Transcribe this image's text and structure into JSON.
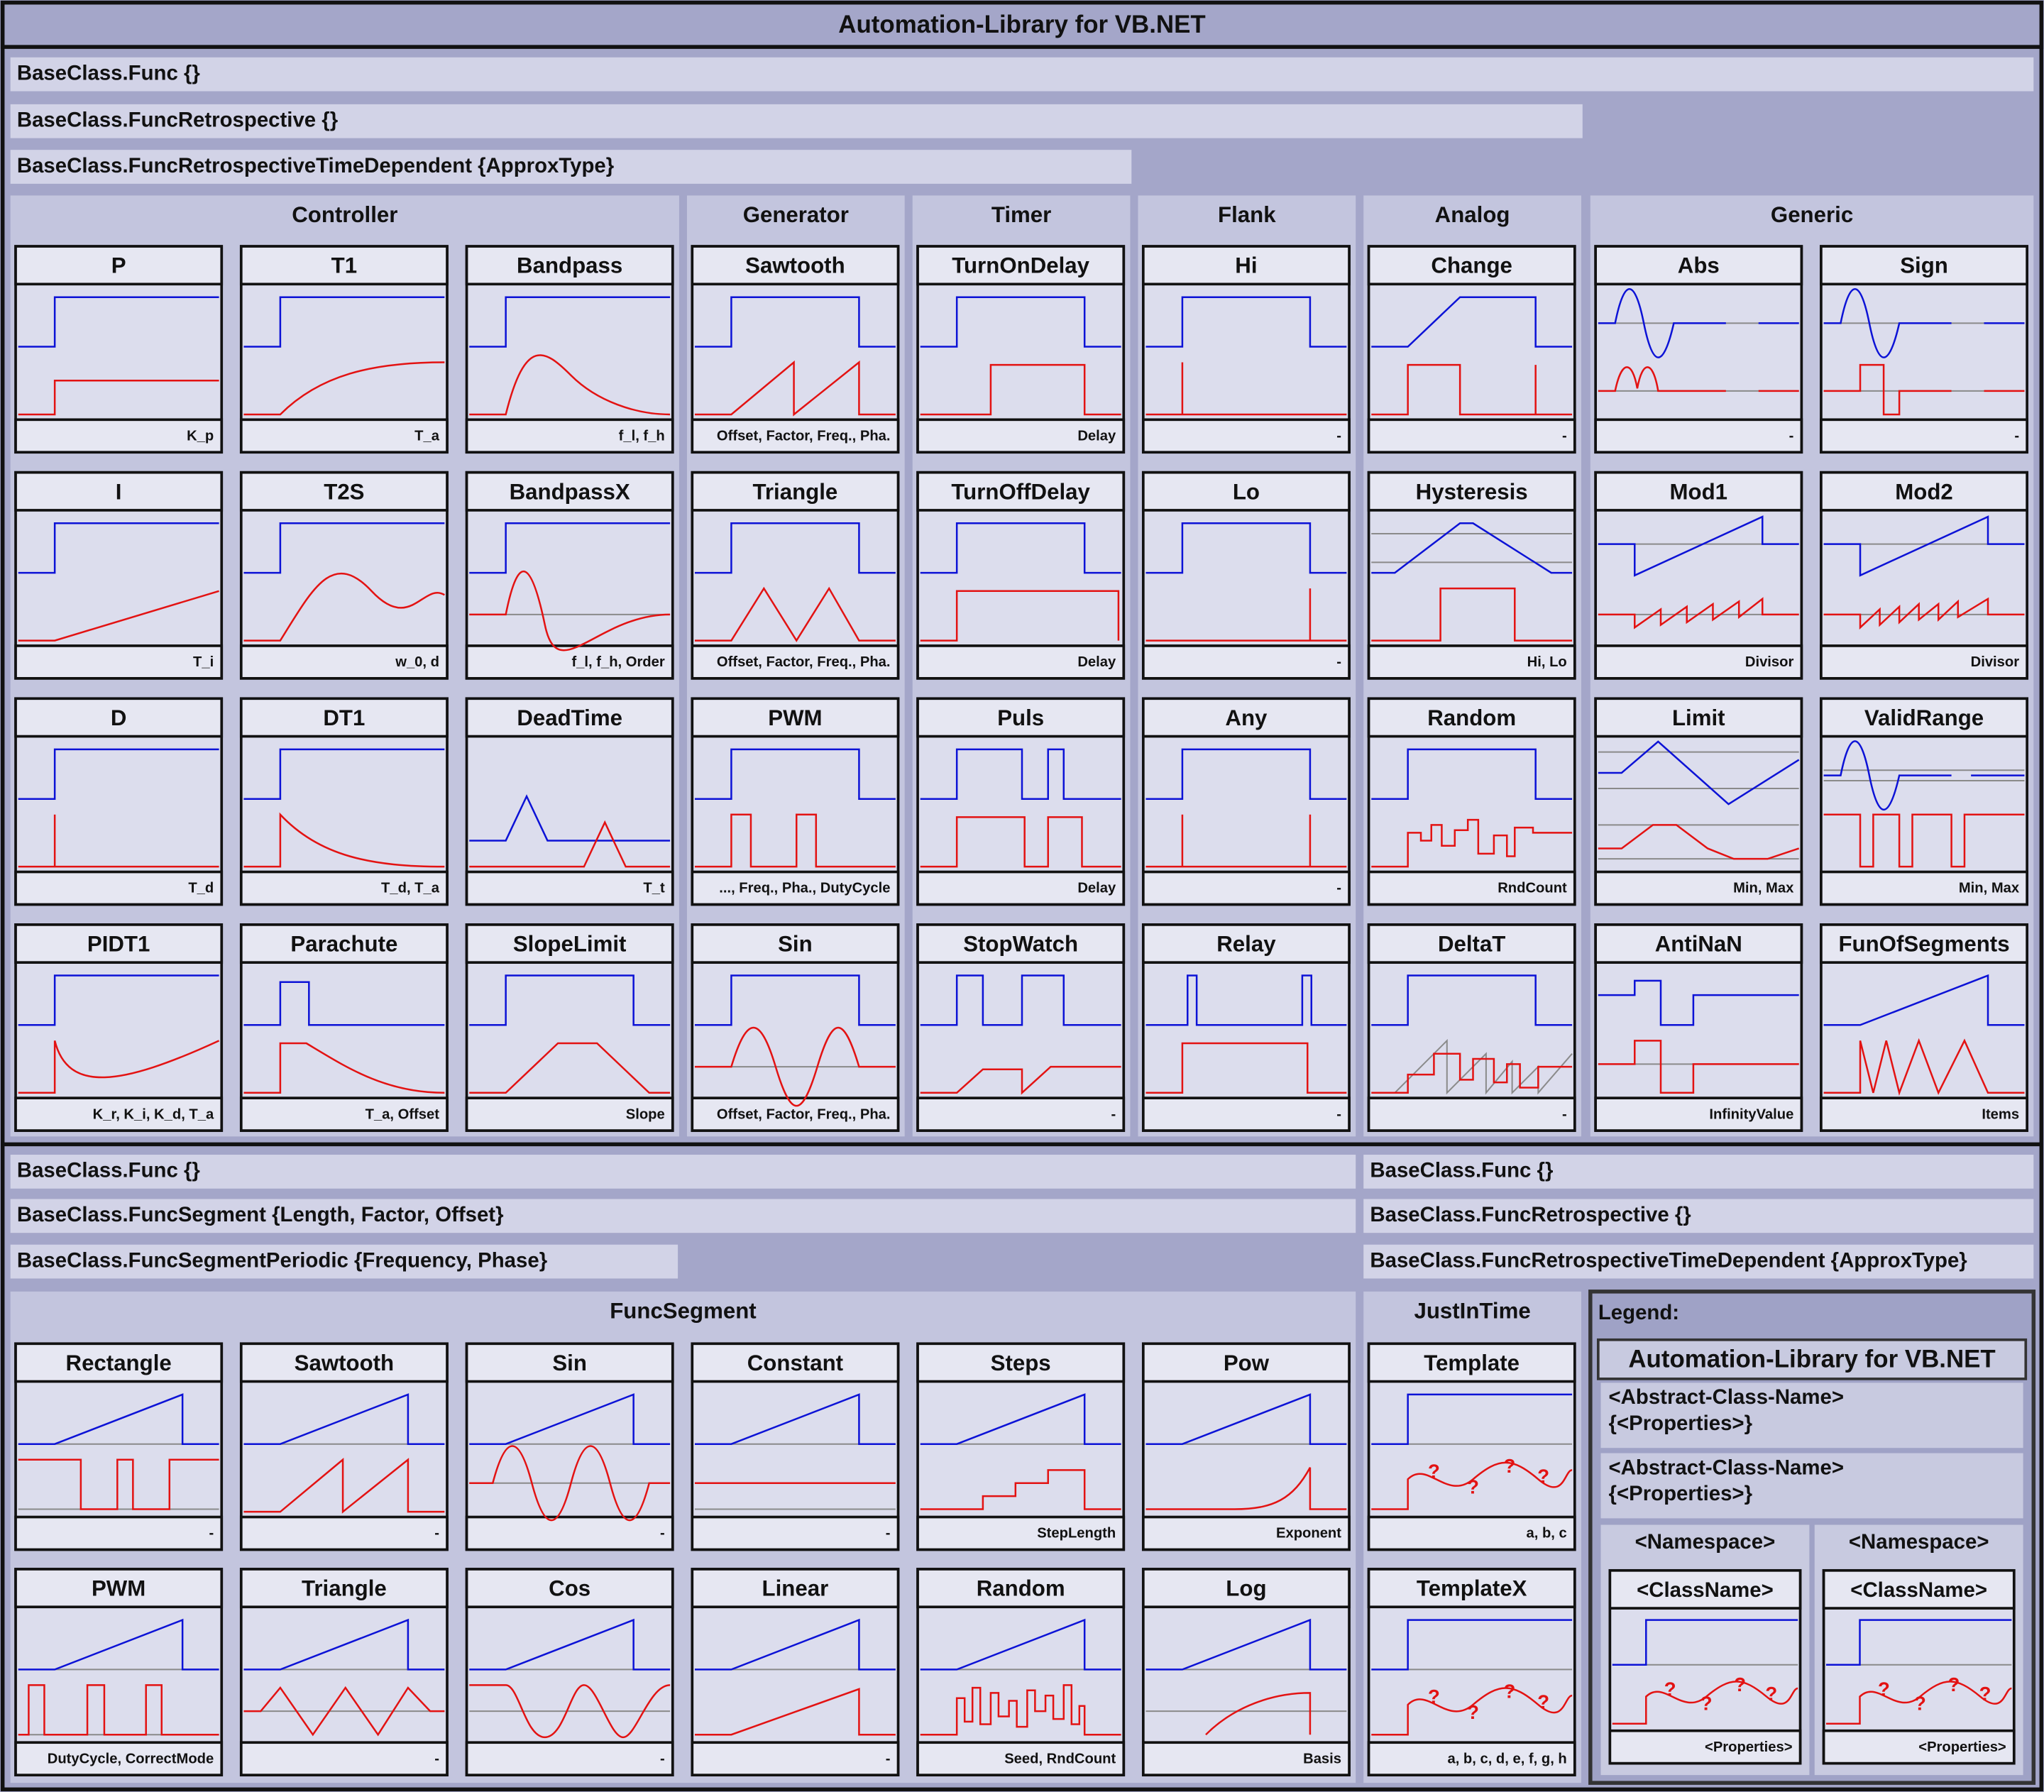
{
  "title": "Automation-Library for VB.NET",
  "top": {
    "bases": [
      "BaseClass.Func {}",
      "BaseClass.FuncRetrospective {}",
      "BaseClass.FuncRetrospectiveTimeDependent {ApproxType}"
    ],
    "groups": [
      {
        "name": "Controller",
        "cards": [
          {
            "name": "P",
            "params": "K_p"
          },
          {
            "name": "T1",
            "params": "T_a"
          },
          {
            "name": "Bandpass",
            "params": "f_l, f_h"
          },
          {
            "name": "I",
            "params": "T_i"
          },
          {
            "name": "T2S",
            "params": "w_0, d"
          },
          {
            "name": "BandpassX",
            "params": "f_l, f_h, Order"
          },
          {
            "name": "D",
            "params": "T_d"
          },
          {
            "name": "DT1",
            "params": "T_d, T_a"
          },
          {
            "name": "DeadTime",
            "params": "T_t"
          },
          {
            "name": "PIDT1",
            "params": "K_r, K_i, K_d, T_a"
          },
          {
            "name": "Parachute",
            "params": "T_a, Offset"
          },
          {
            "name": "SlopeLimit",
            "params": "Slope"
          }
        ]
      },
      {
        "name": "Generator",
        "cards": [
          {
            "name": "Sawtooth",
            "params": "Offset, Factor, Freq., Pha."
          },
          {
            "name": "Triangle",
            "params": "Offset, Factor, Freq., Pha."
          },
          {
            "name": "PWM",
            "params": "..., Freq., Pha., DutyCycle"
          },
          {
            "name": "Sin",
            "params": "Offset, Factor, Freq., Pha."
          }
        ]
      },
      {
        "name": "Timer",
        "cards": [
          {
            "name": "TurnOnDelay",
            "params": "Delay"
          },
          {
            "name": "TurnOffDelay",
            "params": "Delay"
          },
          {
            "name": "Puls",
            "params": "Delay"
          },
          {
            "name": "StopWatch",
            "params": "-"
          }
        ]
      },
      {
        "name": "Flank",
        "cards": [
          {
            "name": "Hi",
            "params": "-"
          },
          {
            "name": "Lo",
            "params": "-"
          },
          {
            "name": "Any",
            "params": "-"
          },
          {
            "name": "Relay",
            "params": "-"
          }
        ]
      },
      {
        "name": "Analog",
        "cards": [
          {
            "name": "Change",
            "params": "-"
          },
          {
            "name": "Hysteresis",
            "params": "Hi, Lo"
          },
          {
            "name": "Random",
            "params": "RndCount"
          },
          {
            "name": "DeltaT",
            "params": "-"
          }
        ]
      },
      {
        "name": "Generic",
        "cards": [
          {
            "name": "Abs",
            "params": "-"
          },
          {
            "name": "Sign",
            "params": "-"
          },
          {
            "name": "Mod1",
            "params": "Divisor"
          },
          {
            "name": "Mod2",
            "params": "Divisor"
          },
          {
            "name": "Limit",
            "params": "Min, Max"
          },
          {
            "name": "ValidRange",
            "params": "Min, Max"
          },
          {
            "name": "AntiNaN",
            "params": "InfinityValue"
          },
          {
            "name": "FunOfSegments",
            "params": "Items"
          }
        ]
      }
    ]
  },
  "bottom": {
    "left_bases": [
      "BaseClass.Func {}",
      "BaseClass.FuncSegment {Length, Factor, Offset}",
      "BaseClass.FuncSegmentPeriodic {Frequency, Phase}"
    ],
    "right_bases": [
      "BaseClass.Func {}",
      "BaseClass.FuncRetrospective {}",
      "BaseClass.FuncRetrospectiveTimeDependent {ApproxType}"
    ],
    "groups": [
      {
        "name": "FuncSegment",
        "cards": [
          {
            "name": "Rectangle",
            "params": "-"
          },
          {
            "name": "Sawtooth",
            "params": "-"
          },
          {
            "name": "Sin",
            "params": "-"
          },
          {
            "name": "Constant",
            "params": "-"
          },
          {
            "name": "Steps",
            "params": "StepLength"
          },
          {
            "name": "Pow",
            "params": "Exponent"
          },
          {
            "name": "PWM",
            "params": "DutyCycle, CorrectMode"
          },
          {
            "name": "Triangle",
            "params": "-"
          },
          {
            "name": "Cos",
            "params": "-"
          },
          {
            "name": "Linear",
            "params": "-"
          },
          {
            "name": "Random",
            "params": "Seed, RndCount"
          },
          {
            "name": "Log",
            "params": "Basis"
          }
        ]
      },
      {
        "name": "JustInTime",
        "cards": [
          {
            "name": "Template",
            "params": "a, b, c"
          },
          {
            "name": "TemplateX",
            "params": "a, b, c, d, e, f, g, h"
          }
        ]
      }
    ]
  },
  "legend": {
    "label": "Legend:",
    "title": "Automation-Library for VB.NET",
    "abstract": [
      {
        "name": "<Abstract-Class-Name>",
        "properties": "{<Properties>}"
      },
      {
        "name": "<Abstract-Class-Name>",
        "properties": "{<Properties>}"
      }
    ],
    "namespaces": [
      {
        "name": "<Namespace>",
        "class": "<ClassName>",
        "params": "<Properties>"
      },
      {
        "name": "<Namespace>",
        "class": "<ClassName>",
        "params": "<Properties>"
      }
    ]
  },
  "unknown_mark": "?"
}
